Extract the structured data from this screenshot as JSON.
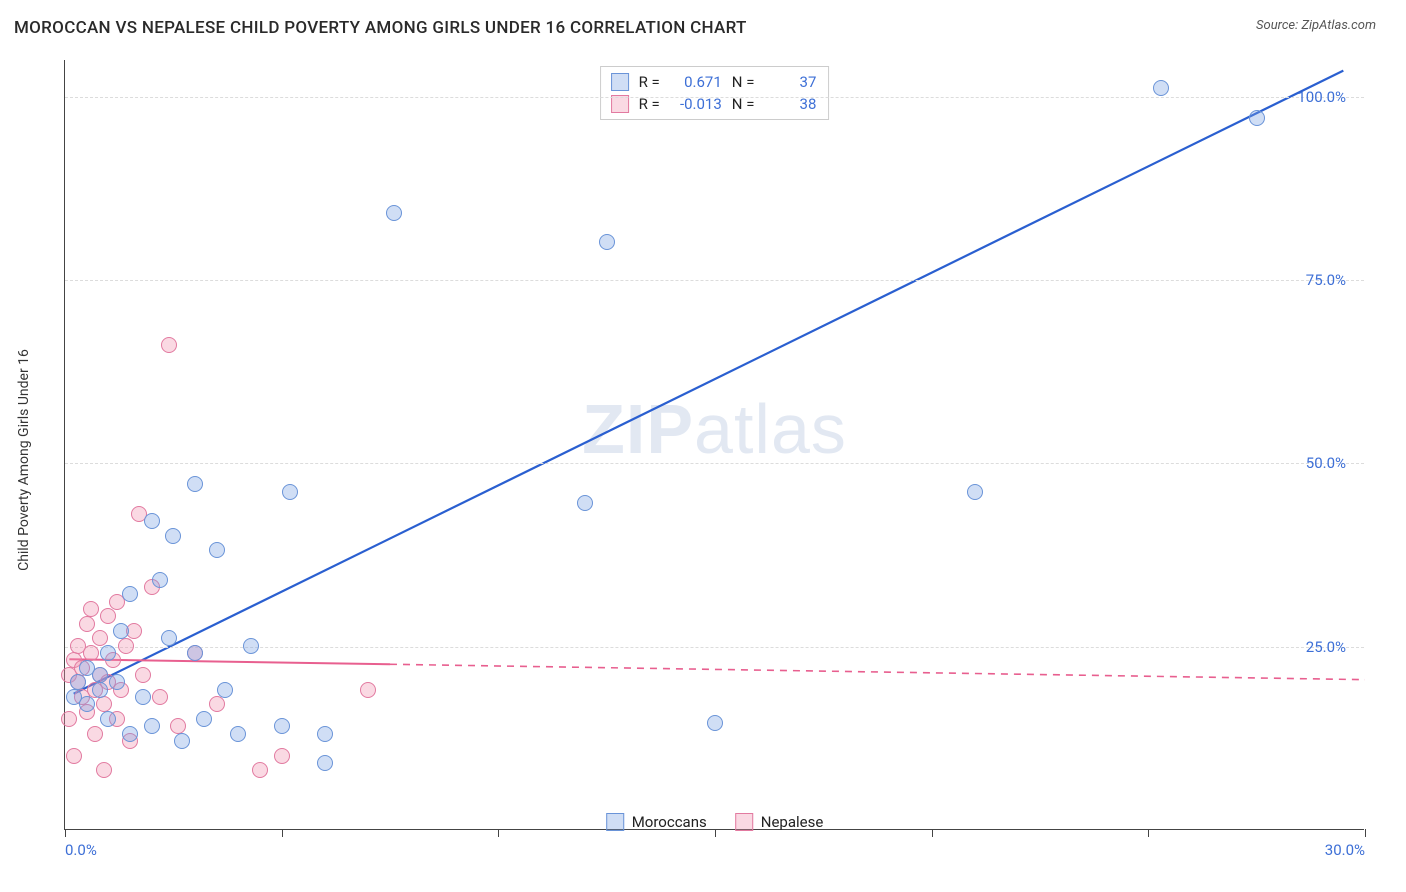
{
  "header": {
    "title": "MOROCCAN VS NEPALESE CHILD POVERTY AMONG GIRLS UNDER 16 CORRELATION CHART",
    "source_prefix": "Source: ",
    "source_name": "ZipAtlas.com"
  },
  "watermark": {
    "zip": "ZIP",
    "atlas": "atlas"
  },
  "chart": {
    "type": "scatter-correlation",
    "y_axis_label": "Child Poverty Among Girls Under 16",
    "background_color": "#ffffff",
    "axis_color": "#444444",
    "grid_color": "#dcdcdc",
    "tick_label_color": "#3d6fd6",
    "xlim": [
      0,
      30
    ],
    "ylim": [
      0,
      105
    ],
    "y_ticks": [
      {
        "val": 25,
        "label": "25.0%"
      },
      {
        "val": 50,
        "label": "50.0%"
      },
      {
        "val": 75,
        "label": "75.0%"
      },
      {
        "val": 100,
        "label": "100.0%"
      }
    ],
    "x_ticks": [
      0,
      5,
      10,
      15,
      20,
      25,
      30
    ],
    "x_tick_labels": [
      {
        "val": 0,
        "label": "0.0%"
      },
      {
        "val": 30,
        "label": "30.0%"
      }
    ],
    "point_radius": 8,
    "point_border_width": 1.2,
    "series": {
      "moroccans": {
        "label": "Moroccans",
        "fill": "rgba(120,160,225,0.35)",
        "stroke": "#6a94d8",
        "points": [
          [
            0.2,
            18
          ],
          [
            0.3,
            20
          ],
          [
            0.5,
            22
          ],
          [
            0.5,
            17
          ],
          [
            0.8,
            21
          ],
          [
            0.8,
            19
          ],
          [
            1.0,
            24
          ],
          [
            1.0,
            15
          ],
          [
            1.2,
            20
          ],
          [
            1.3,
            27
          ],
          [
            1.5,
            13
          ],
          [
            1.5,
            32
          ],
          [
            1.8,
            18
          ],
          [
            2.0,
            42
          ],
          [
            2.0,
            14
          ],
          [
            2.2,
            34
          ],
          [
            2.4,
            26
          ],
          [
            2.5,
            40
          ],
          [
            2.7,
            12
          ],
          [
            3.0,
            47
          ],
          [
            3.0,
            24
          ],
          [
            3.2,
            15
          ],
          [
            3.5,
            38
          ],
          [
            3.7,
            19
          ],
          [
            4.0,
            13
          ],
          [
            4.3,
            25
          ],
          [
            5.0,
            14
          ],
          [
            5.2,
            46
          ],
          [
            6.0,
            13
          ],
          [
            6.0,
            9
          ],
          [
            7.6,
            84
          ],
          [
            12.0,
            44.5
          ],
          [
            12.5,
            80
          ],
          [
            15.0,
            14.5
          ],
          [
            21.0,
            46
          ],
          [
            25.3,
            101
          ],
          [
            27.5,
            97
          ]
        ]
      },
      "nepalese": {
        "label": "Nepalese",
        "fill": "rgba(240,145,175,0.35)",
        "stroke": "#e27aa0",
        "points": [
          [
            0.1,
            21
          ],
          [
            0.1,
            15
          ],
          [
            0.2,
            23
          ],
          [
            0.2,
            10
          ],
          [
            0.3,
            20
          ],
          [
            0.3,
            25
          ],
          [
            0.4,
            18
          ],
          [
            0.4,
            22
          ],
          [
            0.5,
            28
          ],
          [
            0.5,
            16
          ],
          [
            0.6,
            24
          ],
          [
            0.6,
            30
          ],
          [
            0.7,
            19
          ],
          [
            0.7,
            13
          ],
          [
            0.8,
            26
          ],
          [
            0.8,
            21
          ],
          [
            0.9,
            17
          ],
          [
            0.9,
            8
          ],
          [
            1.0,
            20
          ],
          [
            1.0,
            29
          ],
          [
            1.1,
            23
          ],
          [
            1.2,
            15
          ],
          [
            1.2,
            31
          ],
          [
            1.3,
            19
          ],
          [
            1.4,
            25
          ],
          [
            1.5,
            12
          ],
          [
            1.6,
            27
          ],
          [
            1.7,
            43
          ],
          [
            1.8,
            21
          ],
          [
            2.0,
            33
          ],
          [
            2.2,
            18
          ],
          [
            2.4,
            66
          ],
          [
            2.6,
            14
          ],
          [
            3.0,
            24
          ],
          [
            3.5,
            17
          ],
          [
            4.5,
            8
          ],
          [
            5.0,
            10
          ],
          [
            7.0,
            19
          ]
        ]
      }
    },
    "trend_lines": {
      "moroccans": {
        "color": "#2a5fd0",
        "width": 2.2,
        "solid_from_x": 0.2,
        "solid_to_x": 29.5,
        "y_at_x0": 18,
        "y_at_x30": 105,
        "dashed_extension": false
      },
      "nepalese": {
        "color": "#e85f8f",
        "width": 2,
        "solid_from_x": 0.1,
        "solid_to_x": 7.5,
        "y_at_x0": 23.3,
        "y_at_x30": 20.5,
        "dashed_extension": true
      }
    }
  },
  "stats": {
    "rows": [
      {
        "series": "moroccans",
        "r_label": "R =",
        "r_val": "0.671",
        "n_label": "N =",
        "n_val": "37"
      },
      {
        "series": "nepalese",
        "r_label": "R =",
        "r_val": "-0.013",
        "n_label": "N =",
        "n_val": "38"
      }
    ]
  },
  "legend": {
    "items": [
      {
        "series": "moroccans",
        "label": "Moroccans"
      },
      {
        "series": "nepalese",
        "label": "Nepalese"
      }
    ]
  }
}
